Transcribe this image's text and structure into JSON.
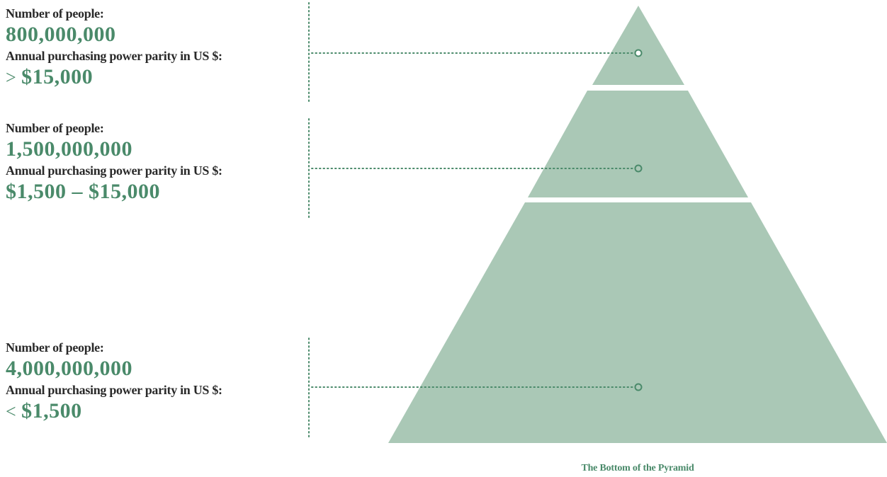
{
  "tiers": [
    {
      "people_label": "Number of people:",
      "people_value": "800,000,000",
      "ppp_label": "Annual purchasing power parity in US $:",
      "ppp_prefix": "> ",
      "ppp_value": "$15,000"
    },
    {
      "people_label": "Number of people:",
      "people_value": "1,500,000,000",
      "ppp_label": "Annual purchasing power parity in US $:",
      "ppp_prefix": "",
      "ppp_value": "$1,500 – $15,000"
    },
    {
      "people_label": "Number of people:",
      "people_value": "4,000,000,000",
      "ppp_label": "Annual purchasing power parity in US $:",
      "ppp_prefix": "< ",
      "ppp_value": "$1,500"
    }
  ],
  "caption": "The Bottom of the Pyramid",
  "colors": {
    "pyramid_fill": "#aac8b6",
    "accent": "#4a8a6a",
    "label_text": "#2a2a2a",
    "connector": "#4a8a6a"
  }
}
